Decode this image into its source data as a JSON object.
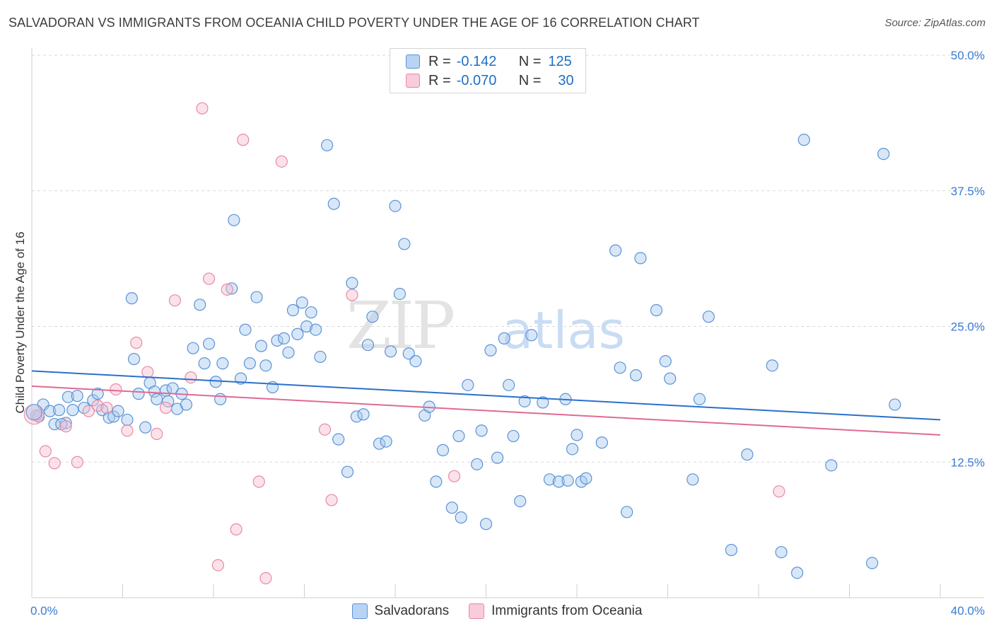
{
  "title": "SALVADORAN VS IMMIGRANTS FROM OCEANIA CHILD POVERTY UNDER THE AGE OF 16 CORRELATION CHART",
  "source": "Source: ZipAtlas.com",
  "watermark": {
    "zip": "ZIP",
    "atlas": "atlas"
  },
  "colors": {
    "blue_fill": "#a9c9ee",
    "blue_stroke": "#5b93d6",
    "blue_line": "#2b70cc",
    "pink_fill": "#f6bfcf",
    "pink_stroke": "#e88aa6",
    "pink_line": "#e06a92",
    "grid": "#d9d9d9",
    "axis_label": "#3a7bd5"
  },
  "legend": {
    "rows": [
      {
        "r_label": "R =",
        "r_value": "-0.142",
        "n_label": "N =",
        "n_value": "125"
      },
      {
        "r_label": "R =",
        "r_value": "-0.070",
        "n_label": "N =",
        "n_value": "30"
      }
    ]
  },
  "bottom_legend": {
    "series1": "Salvadorans",
    "series2": "Immigrants from Oceania"
  },
  "chart_data": {
    "type": "scatter",
    "title": "SALVADORAN VS IMMIGRANTS FROM OCEANIA CHILD POVERTY UNDER THE AGE OF 16 CORRELATION CHART",
    "xlabel": "",
    "ylabel": "Child Poverty Under the Age of 16",
    "xlim": [
      0,
      40
    ],
    "ylim": [
      0,
      50
    ],
    "x_tick_labels": [
      "0.0%",
      "40.0%"
    ],
    "y_tick_labels": [
      "12.5%",
      "25.0%",
      "37.5%",
      "50.0%"
    ],
    "y_ticks": [
      12.5,
      25,
      37.5,
      50
    ],
    "x_minor_ticks": [
      4,
      8,
      12,
      16,
      20,
      24,
      28,
      32,
      36,
      40
    ],
    "series": [
      {
        "name": "Salvadorans",
        "R": -0.142,
        "N": 125,
        "trend": {
          "x": [
            0,
            40
          ],
          "y": [
            20.9,
            16.4
          ]
        },
        "points": [
          [
            0.2,
            16.8
          ],
          [
            0.5,
            17.8
          ],
          [
            0.8,
            17.2
          ],
          [
            1.0,
            16.0
          ],
          [
            1.2,
            17.3
          ],
          [
            1.5,
            16.1
          ],
          [
            1.8,
            17.3
          ],
          [
            1.6,
            18.5
          ],
          [
            2.0,
            18.6
          ],
          [
            2.3,
            17.5
          ],
          [
            2.7,
            18.2
          ],
          [
            2.9,
            18.8
          ],
          [
            3.1,
            17.3
          ],
          [
            3.4,
            16.6
          ],
          [
            3.6,
            16.7
          ],
          [
            3.8,
            17.2
          ],
          [
            4.2,
            16.4
          ],
          [
            4.5,
            22.0
          ],
          [
            4.4,
            27.6
          ],
          [
            4.7,
            18.8
          ],
          [
            5.0,
            15.7
          ],
          [
            5.2,
            19.8
          ],
          [
            5.4,
            19.0
          ],
          [
            5.5,
            18.3
          ],
          [
            5.9,
            19.1
          ],
          [
            6.0,
            18.1
          ],
          [
            6.2,
            19.3
          ],
          [
            6.4,
            17.4
          ],
          [
            6.6,
            18.8
          ],
          [
            6.8,
            17.8
          ],
          [
            7.1,
            23.0
          ],
          [
            7.4,
            27.0
          ],
          [
            7.6,
            21.6
          ],
          [
            7.8,
            23.4
          ],
          [
            8.1,
            19.9
          ],
          [
            8.3,
            18.3
          ],
          [
            8.4,
            21.6
          ],
          [
            8.8,
            28.5
          ],
          [
            8.9,
            34.8
          ],
          [
            9.2,
            20.2
          ],
          [
            9.4,
            24.7
          ],
          [
            9.6,
            21.6
          ],
          [
            9.9,
            27.7
          ],
          [
            10.1,
            23.2
          ],
          [
            10.3,
            21.4
          ],
          [
            10.6,
            19.4
          ],
          [
            10.8,
            23.7
          ],
          [
            11.1,
            23.9
          ],
          [
            11.3,
            22.6
          ],
          [
            11.5,
            26.5
          ],
          [
            11.7,
            24.3
          ],
          [
            11.9,
            27.2
          ],
          [
            12.1,
            25.0
          ],
          [
            12.3,
            26.3
          ],
          [
            12.5,
            24.7
          ],
          [
            12.7,
            22.2
          ],
          [
            13.0,
            41.7
          ],
          [
            13.3,
            36.3
          ],
          [
            13.5,
            14.6
          ],
          [
            13.9,
            11.6
          ],
          [
            14.1,
            29.0
          ],
          [
            14.3,
            16.7
          ],
          [
            14.6,
            16.9
          ],
          [
            14.8,
            23.3
          ],
          [
            15.0,
            25.9
          ],
          [
            15.3,
            14.2
          ],
          [
            15.6,
            14.4
          ],
          [
            15.8,
            22.7
          ],
          [
            16.0,
            36.1
          ],
          [
            16.2,
            28.0
          ],
          [
            16.4,
            32.6
          ],
          [
            16.6,
            22.5
          ],
          [
            16.9,
            21.8
          ],
          [
            17.3,
            16.8
          ],
          [
            17.5,
            17.6
          ],
          [
            17.8,
            10.7
          ],
          [
            18.1,
            13.6
          ],
          [
            18.5,
            8.3
          ],
          [
            18.8,
            14.9
          ],
          [
            18.9,
            7.4
          ],
          [
            19.2,
            19.6
          ],
          [
            19.6,
            12.3
          ],
          [
            19.8,
            15.4
          ],
          [
            20.0,
            6.8
          ],
          [
            20.2,
            22.8
          ],
          [
            20.5,
            12.9
          ],
          [
            20.8,
            23.9
          ],
          [
            21.0,
            19.6
          ],
          [
            21.2,
            14.9
          ],
          [
            21.5,
            8.9
          ],
          [
            21.7,
            18.1
          ],
          [
            22.0,
            24.2
          ],
          [
            22.5,
            18.0
          ],
          [
            22.8,
            10.9
          ],
          [
            23.2,
            10.7
          ],
          [
            23.5,
            18.3
          ],
          [
            23.6,
            10.8
          ],
          [
            23.8,
            13.7
          ],
          [
            24.0,
            15.0
          ],
          [
            24.2,
            10.7
          ],
          [
            24.4,
            11.0
          ],
          [
            25.1,
            14.3
          ],
          [
            25.7,
            32.0
          ],
          [
            25.9,
            21.2
          ],
          [
            26.2,
            7.9
          ],
          [
            26.6,
            20.5
          ],
          [
            26.8,
            31.3
          ],
          [
            27.5,
            26.5
          ],
          [
            27.9,
            21.8
          ],
          [
            28.1,
            20.2
          ],
          [
            29.1,
            10.9
          ],
          [
            29.4,
            18.3
          ],
          [
            29.8,
            25.9
          ],
          [
            30.8,
            4.4
          ],
          [
            31.5,
            13.2
          ],
          [
            32.6,
            21.4
          ],
          [
            33.0,
            4.2
          ],
          [
            33.7,
            2.3
          ],
          [
            34.0,
            42.2
          ],
          [
            35.2,
            12.2
          ],
          [
            37.0,
            3.2
          ],
          [
            37.5,
            40.9
          ],
          [
            38.0,
            17.8
          ],
          [
            0.3,
            16.7
          ],
          [
            1.3,
            16.0
          ]
        ]
      },
      {
        "name": "Immigrants from Oceania",
        "R": -0.07,
        "N": 30,
        "trend": {
          "x": [
            0,
            40
          ],
          "y": [
            19.5,
            15.0
          ]
        },
        "points": [
          [
            0.2,
            16.8
          ],
          [
            0.6,
            13.5
          ],
          [
            1.0,
            12.4
          ],
          [
            1.5,
            15.8
          ],
          [
            2.0,
            12.5
          ],
          [
            2.5,
            17.2
          ],
          [
            2.9,
            17.7
          ],
          [
            3.3,
            17.5
          ],
          [
            3.7,
            19.2
          ],
          [
            4.2,
            15.4
          ],
          [
            4.6,
            23.5
          ],
          [
            5.1,
            20.8
          ],
          [
            5.5,
            15.1
          ],
          [
            5.9,
            17.5
          ],
          [
            6.3,
            27.4
          ],
          [
            7.0,
            20.3
          ],
          [
            7.5,
            45.1
          ],
          [
            7.8,
            29.4
          ],
          [
            8.2,
            3.0
          ],
          [
            8.6,
            28.4
          ],
          [
            9.0,
            6.3
          ],
          [
            9.3,
            42.2
          ],
          [
            10.0,
            10.7
          ],
          [
            10.3,
            1.8
          ],
          [
            11.0,
            40.2
          ],
          [
            12.9,
            15.5
          ],
          [
            13.2,
            9.0
          ],
          [
            14.1,
            27.9
          ],
          [
            18.6,
            11.2
          ],
          [
            32.9,
            9.8
          ]
        ]
      }
    ]
  }
}
